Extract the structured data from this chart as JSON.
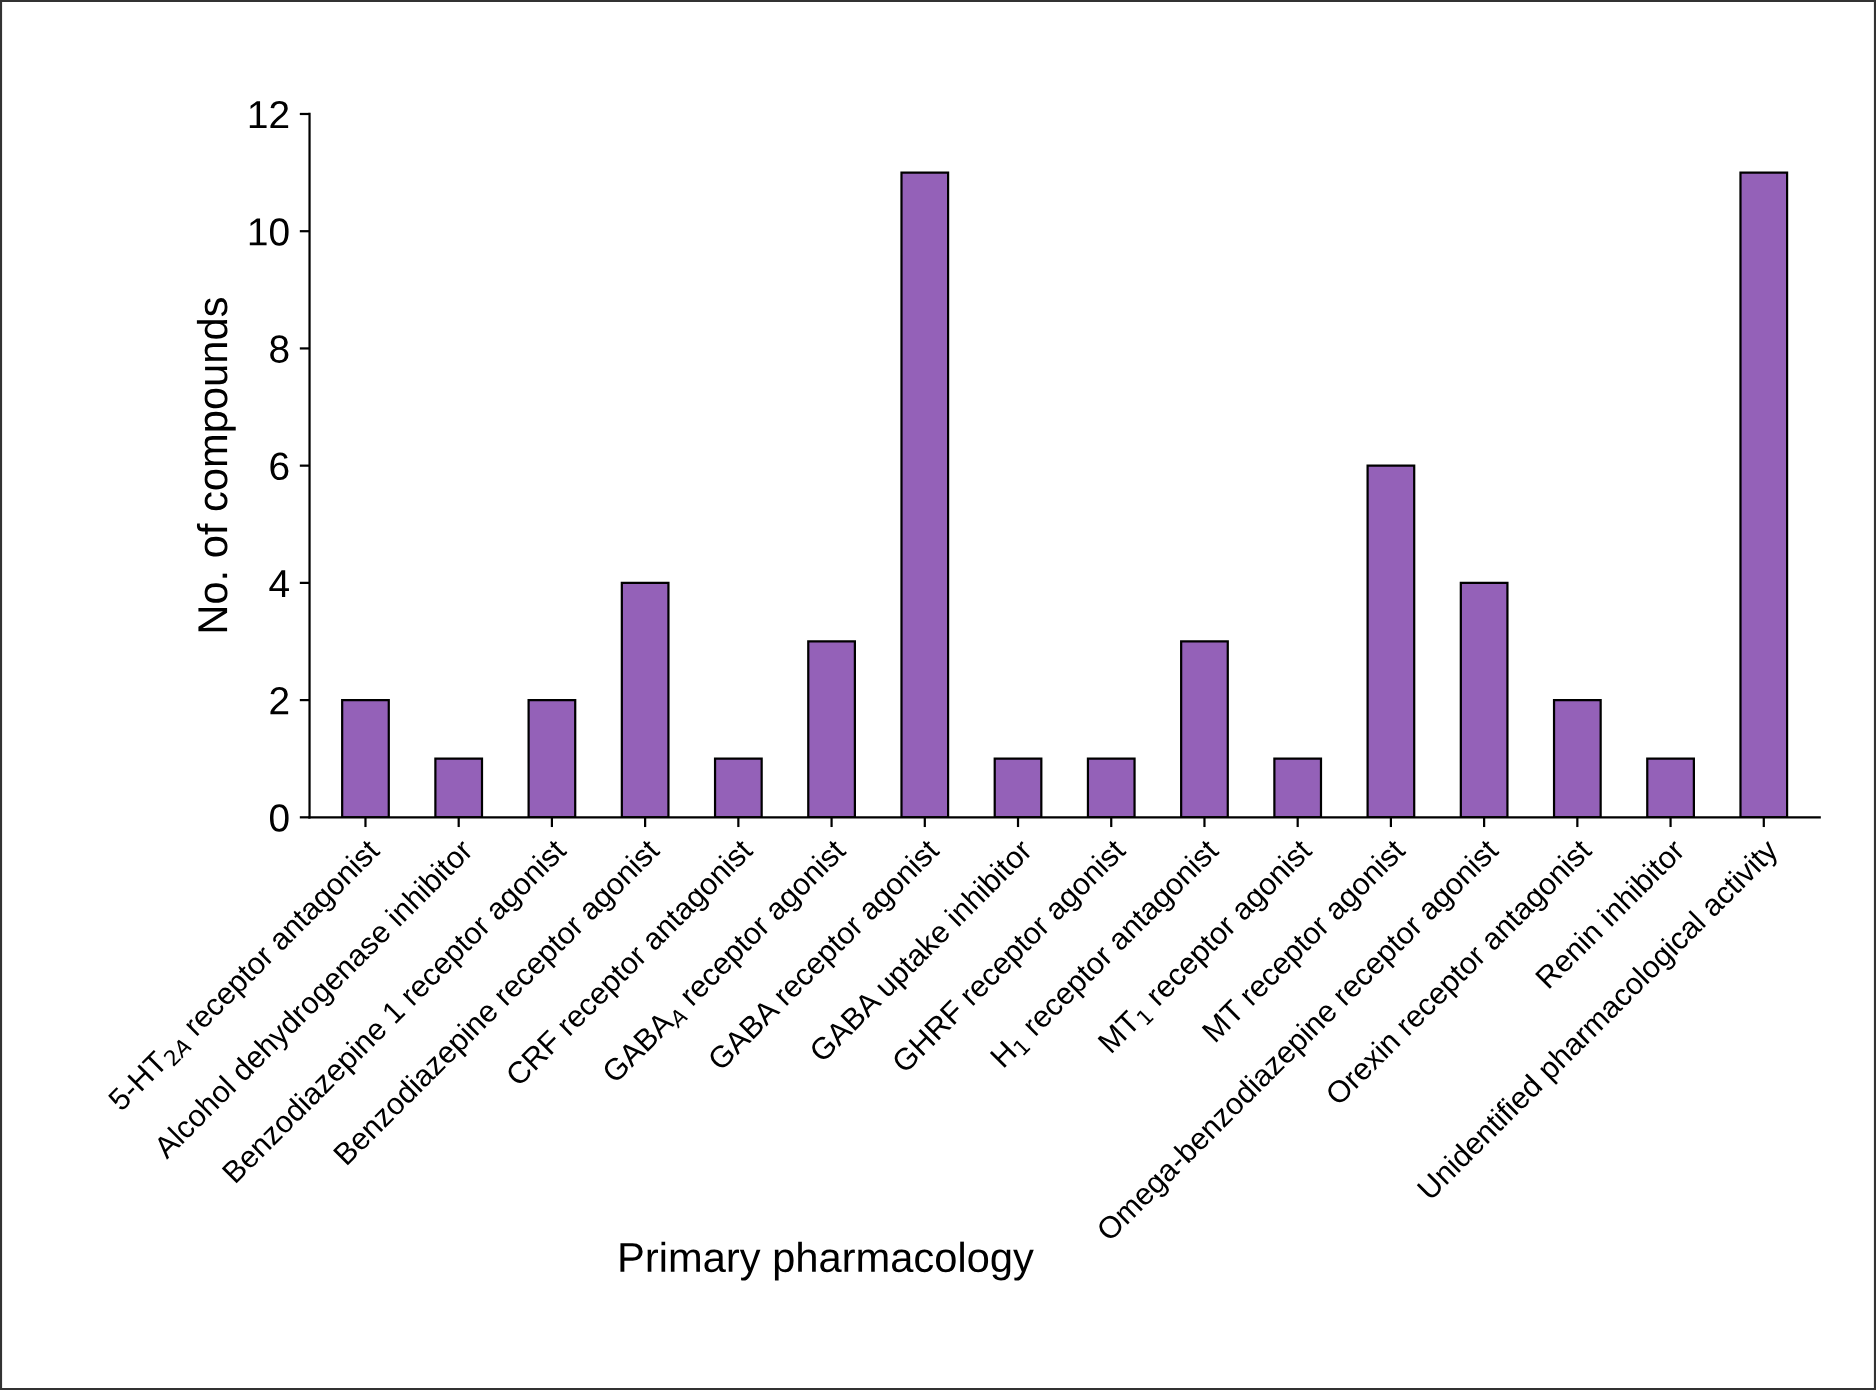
{
  "chart_data": {
    "type": "bar",
    "xlabel": "Primary pharmacology",
    "ylabel": "No. of compounds",
    "categories": [
      "5-HT$_{2A}$ receptor antagonist",
      "Alcohol dehydrogenase inhibitor",
      "Benzodiazepine 1 receptor agonist",
      "Benzodiazepine receptor agonist",
      "CRF receptor antagonist",
      "GABA$_{A}$ receptor agonist",
      "GABA receptor agonist",
      "GABA uptake inhibitor",
      "GHRF receptor agonist",
      "H$_{1}$ receptor antagonist",
      "MT$_{1}$ receptor agonist",
      "MT receptor agonist",
      "Omega-benzodiazepine receptor agonist",
      "Orexin receptor antagonist",
      "Renin inhibitor",
      "Unidentified pharmacological activity"
    ],
    "values": [
      2,
      1,
      2,
      4,
      1,
      3,
      11,
      1,
      1,
      3,
      1,
      6,
      4,
      2,
      1,
      11
    ],
    "color": "#9461b8",
    "ylim": [
      0,
      12
    ],
    "yticks": [
      0,
      2,
      4,
      6,
      8,
      10,
      12
    ],
    "grid": false,
    "legend": false
  }
}
